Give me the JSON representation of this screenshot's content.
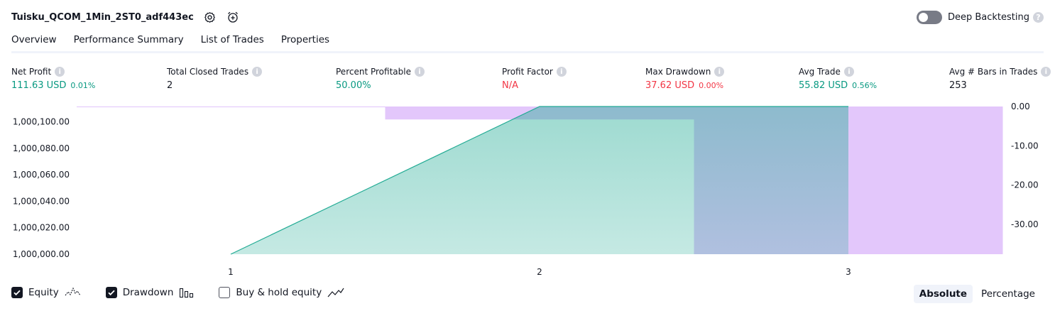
{
  "header": {
    "strategy_name": "Tuisku_QCOM_1Min_2ST0_adf443ec",
    "deep_backtesting_label": "Deep Backtesting",
    "deep_backtesting_enabled": false,
    "settings_icon": "gear-icon",
    "alert_icon": "alarm-clock-plus-icon"
  },
  "tabs": [
    {
      "label": "Overview",
      "active": true
    },
    {
      "label": "Performance Summary",
      "active": false
    },
    {
      "label": "List of Trades",
      "active": false
    },
    {
      "label": "Properties",
      "active": false
    }
  ],
  "stats": {
    "net_profit": {
      "label": "Net Profit",
      "value": "111.63 USD",
      "pct": "0.01%"
    },
    "total_closed_trades": {
      "label": "Total Closed Trades",
      "value": "2"
    },
    "percent_profitable": {
      "label": "Percent Profitable",
      "value": "50.00%"
    },
    "profit_factor": {
      "label": "Profit Factor",
      "value": "N/A"
    },
    "max_drawdown": {
      "label": "Max Drawdown",
      "value": "37.62 USD",
      "pct": "0.00%"
    },
    "avg_trade": {
      "label": "Avg Trade",
      "value": "55.82 USD",
      "pct": "0.56%"
    },
    "avg_bars": {
      "label": "Avg # Bars in Trades",
      "value": "253"
    }
  },
  "colors": {
    "green": "#089981",
    "red": "#f23645",
    "equity_line": "#22ab94",
    "drawdown_fill": "#e1c4fb",
    "overlap_fill": "#b0b7e2"
  },
  "chart_data": {
    "type": "area",
    "x_ticks": [
      "1",
      "2",
      "3"
    ],
    "left_axis": {
      "ticks": [
        "1,000,000.00",
        "1,000,020.00",
        "1,000,040.00",
        "1,000,060.00",
        "1,000,080.00",
        "1,000,100.00"
      ],
      "ylim": [
        1000000,
        1000111.63
      ]
    },
    "right_axis": {
      "ticks": [
        "0.00",
        "-10.00",
        "-20.00",
        "-30.00"
      ],
      "ylim": [
        -37.62,
        0
      ]
    },
    "equity": {
      "x": [
        1,
        2,
        3
      ],
      "y": [
        1000000,
        1000111.63,
        1000111.63
      ]
    },
    "drawdown_bars": [
      {
        "x_from": 1.5,
        "x_to": 2,
        "value": -3.3
      },
      {
        "x_from": 2,
        "x_to": 2.5,
        "value": -3.3
      },
      {
        "x_from": 2.5,
        "x_to": 3,
        "value": -37.62
      },
      {
        "x_from": 3,
        "x_to": 3.5,
        "value": -37.62
      }
    ]
  },
  "legend": {
    "equity": {
      "label": "Equity",
      "checked": true
    },
    "drawdown": {
      "label": "Drawdown",
      "checked": true
    },
    "buy_hold": {
      "label": "Buy & hold equity",
      "checked": false
    }
  },
  "modes": {
    "absolute": "Absolute",
    "percentage": "Percentage",
    "selected": "absolute"
  }
}
